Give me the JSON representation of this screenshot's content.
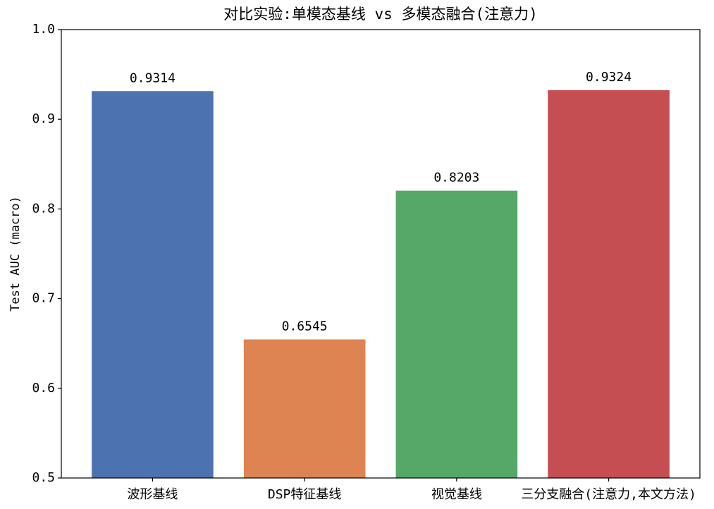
{
  "chart_data": {
    "type": "bar",
    "title": "对比实验:单模态基线 vs 多模态融合(注意力)",
    "y_label": "Test AUC (macro)",
    "categories": [
      "波形基线",
      "DSP特征基线",
      "视觉基线",
      "三分支融合(注意力,本文方法)"
    ],
    "values": [
      0.9314,
      0.6545,
      0.8203,
      0.9324
    ],
    "colors": [
      "#4c72b0",
      "#dd8452",
      "#55a868",
      "#c44e52"
    ],
    "ylim": [
      0.5,
      1.0
    ],
    "yticks": [
      0.5,
      0.6,
      0.7,
      0.8,
      0.9,
      {
        "value": 1.0,
        "label": "1.0"
      }
    ],
    "grid": false
  }
}
